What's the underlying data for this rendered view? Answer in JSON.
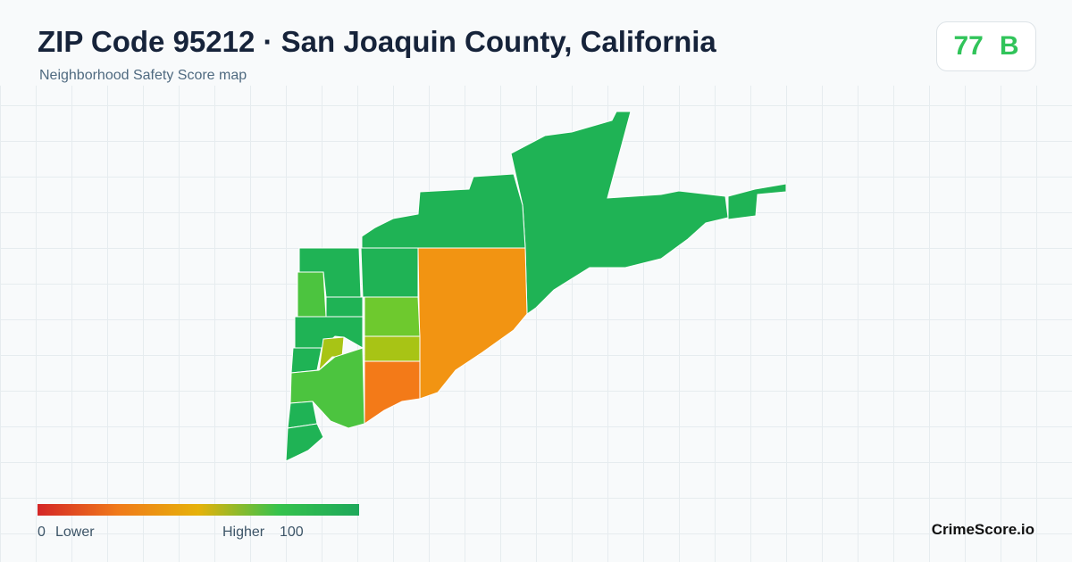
{
  "header": {
    "title": "ZIP Code 95212 · San Joaquin County, California",
    "subtitle": "Neighborhood Safety Score map"
  },
  "score": {
    "value": 77,
    "grade": "B"
  },
  "legend": {
    "min": 0,
    "min_label": "Lower",
    "max_label": "Higher",
    "max": 100
  },
  "brand": "CrimeScore.io"
}
